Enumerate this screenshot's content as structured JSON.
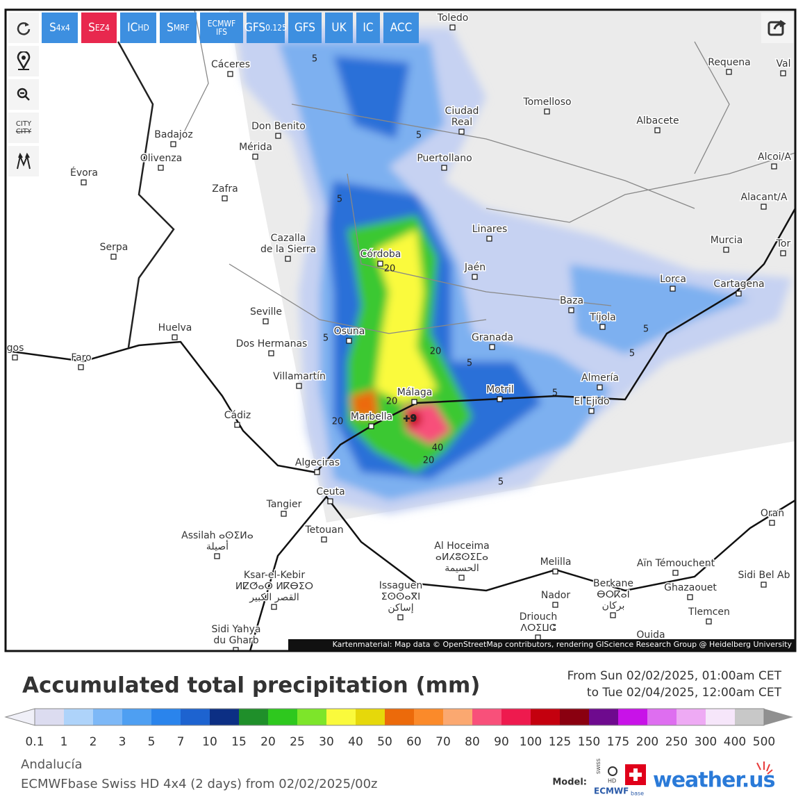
{
  "toolbar": {
    "buttons": [
      {
        "main": "S",
        "sub": "4x4"
      },
      {
        "main": "S",
        "sub": "EZ4"
      },
      {
        "main": "IC",
        "sub": "HD"
      },
      {
        "main": "S",
        "sub": "MRF"
      },
      {
        "main": "ECMWF",
        "sub": "IFS"
      },
      {
        "main": "GFS",
        "sub": "0.125"
      },
      {
        "main": "GFS"
      },
      {
        "main": "UK"
      },
      {
        "main": "IC"
      },
      {
        "main": "ACC"
      }
    ],
    "city_toggle": [
      "CITY",
      "CITY"
    ]
  },
  "map": {
    "cities": [
      {
        "lines": [
          "Toledo"
        ]
      },
      {
        "lines": [
          "Cáceres"
        ]
      },
      {
        "lines": [
          "Requena"
        ]
      },
      {
        "lines": [
          "Val"
        ]
      },
      {
        "lines": [
          "Ciudad",
          "Real"
        ]
      },
      {
        "lines": [
          "Tomelloso"
        ]
      },
      {
        "lines": [
          "Don Benito"
        ]
      },
      {
        "lines": [
          "Mérida"
        ]
      },
      {
        "lines": [
          "Badajoz"
        ]
      },
      {
        "lines": [
          "Albacete"
        ]
      },
      {
        "lines": [
          "Puertollano"
        ]
      },
      {
        "lines": [
          "Olivenza"
        ]
      },
      {
        "lines": [
          "Évora"
        ]
      },
      {
        "lines": [
          "Alcoi/A"
        ]
      },
      {
        "lines": [
          "Zafra"
        ]
      },
      {
        "lines": [
          "Alacant/A"
        ]
      },
      {
        "lines": [
          "Cazalla",
          "de la Sierra"
        ]
      },
      {
        "lines": [
          "Linares"
        ]
      },
      {
        "lines": [
          "Serpa"
        ]
      },
      {
        "lines": [
          "Murcia"
        ]
      },
      {
        "lines": [
          "Tor"
        ]
      },
      {
        "lines": [
          "Córdoba"
        ]
      },
      {
        "lines": [
          "Jaén"
        ]
      },
      {
        "lines": [
          "Lorca"
        ]
      },
      {
        "lines": [
          "Cartagena"
        ]
      },
      {
        "lines": [
          "Baza"
        ]
      },
      {
        "lines": [
          "Seville"
        ]
      },
      {
        "lines": [
          "Tíjola"
        ]
      },
      {
        "lines": [
          "Huelva"
        ]
      },
      {
        "lines": [
          "Osuna"
        ]
      },
      {
        "lines": [
          "Granada"
        ]
      },
      {
        "lines": [
          "Dos Hermanas"
        ]
      },
      {
        "lines": [
          "gos"
        ]
      },
      {
        "lines": [
          "Faro"
        ]
      },
      {
        "lines": [
          "Villamartín"
        ]
      },
      {
        "lines": [
          "Almería"
        ]
      },
      {
        "lines": [
          "Motril"
        ]
      },
      {
        "lines": [
          "Málaga"
        ]
      },
      {
        "lines": [
          "El Ejido"
        ]
      },
      {
        "lines": [
          "Cádiz"
        ]
      },
      {
        "lines": [
          "Marbella"
        ]
      },
      {
        "lines": [
          "Algeciras"
        ]
      },
      {
        "lines": [
          "Ceuta"
        ]
      },
      {
        "lines": [
          "Tangier"
        ]
      },
      {
        "lines": [
          "Oran"
        ]
      },
      {
        "lines": [
          "Tetouan"
        ]
      },
      {
        "lines": [
          "Assilah ⴰⵙⵉⵍⴰ",
          "أصيلة"
        ]
      },
      {
        "lines": [
          "Al Hoceima",
          "ⴰⵍⵃⵓⵙⵉⵎⴰ",
          "الحسيمة"
        ]
      },
      {
        "lines": [
          "Melilla"
        ]
      },
      {
        "lines": [
          "Aïn Témouchent"
        ]
      },
      {
        "lines": [
          "Sidi Bel Ab"
        ]
      },
      {
        "lines": [
          "Ksar-el-Kebir",
          "ⵍⵇⵚⴰⵔ ⵍⴽⴱⵉⵔ",
          "القصر الكبير"
        ]
      },
      {
        "lines": [
          "Issaguen",
          "ⵉⵙⵙⴰⴳⵏ",
          "إساكن"
        ]
      },
      {
        "lines": [
          "Berkane",
          "ⴱⵔⴽⴰⵏ",
          "بركان"
        ]
      },
      {
        "lines": [
          "Ghazaouet"
        ]
      },
      {
        "lines": [
          "Nador"
        ]
      },
      {
        "lines": [
          "Tlemcen"
        ]
      },
      {
        "lines": [
          "Driouch",
          "ⴷⵔⵉⵡⵛ"
        ]
      },
      {
        "lines": [
          "Sidi Yahya",
          "du Gharb"
        ]
      },
      {
        "lines": [
          "Ouida"
        ]
      }
    ],
    "contour_labels": [
      "5",
      "5",
      "5",
      "5",
      "5",
      "5",
      "5",
      "5",
      "5",
      "20",
      "20",
      "20",
      "20",
      "20",
      "40",
      "+9"
    ],
    "attribution": "Kartenmaterial: Map data © OpenStreetMap contributors, rendering GIScience Research Group @ Heidelberg University"
  },
  "legend": {
    "title": "Accumulated total precipitation (mm)",
    "period": [
      "From Sun 02/02/2025, 01:00am CET",
      "to Tue 02/04/2025, 12:00am CET"
    ],
    "ticks": [
      "0.1",
      "1",
      "2",
      "3",
      "5",
      "7",
      "10",
      "15",
      "20",
      "25",
      "30",
      "40",
      "50",
      "60",
      "70",
      "80",
      "90",
      "100",
      "125",
      "150",
      "175",
      "200",
      "250",
      "300",
      "400",
      "500"
    ],
    "colors": [
      "#dcdcf0",
      "#aed3fa",
      "#7db8f7",
      "#4e9ff2",
      "#2a84ec",
      "#1d63d0",
      "#0c2f84",
      "#1f8f2a",
      "#2ec81e",
      "#7de52a",
      "#fafa3c",
      "#e6d80a",
      "#ec6a0a",
      "#fb8a2a",
      "#fba870",
      "#f8507a",
      "#ee1a4e",
      "#c4000e",
      "#8a0010",
      "#6e0a8e",
      "#c812e8",
      "#de6ef0",
      "#eeaaf4",
      "#f6e6fa",
      "#c8c8c8"
    ],
    "under_color": "#f0f0f8",
    "over_color": "#909090",
    "region": "Andalucía",
    "model_run": "ECMWFbase Swiss HD 4x4 (2 days) from 02/02/2025/00z"
  },
  "branding": {
    "model_label": "Model:",
    "swiss": "SWISS",
    "hd": "HD",
    "ecmwf": "ECMWF",
    "base": "base",
    "site": "weather.us"
  }
}
